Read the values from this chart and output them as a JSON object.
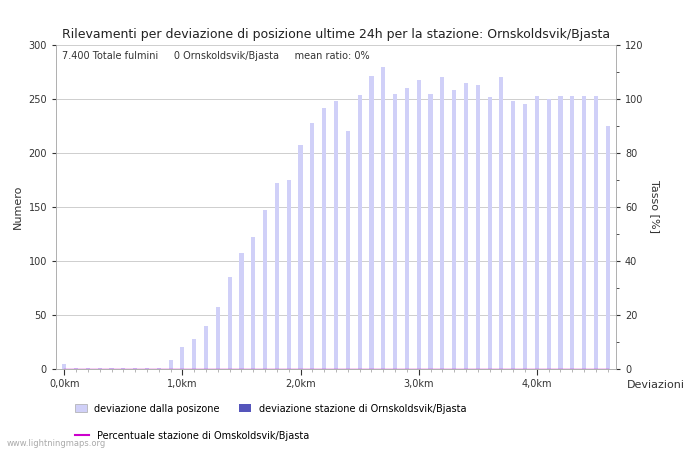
{
  "title": "Rilevamenti per deviazione di posizione ultime 24h per la stazione: Ornskoldsvik/Bjasta",
  "ylabel_left": "Numero",
  "ylabel_right": "Tasso [%]",
  "annotation": "7.400 Totale fulmini     0 Ornskoldsvik/Bjasta     mean ratio: 0%",
  "watermark": "www.lightningmaps.org",
  "background_color": "#ffffff",
  "grid_color": "#bbbbbb",
  "bar_color_light": "#d0d0f8",
  "bar_color_dark": "#5555bb",
  "line_color": "#cc00cc",
  "ylim_left": [
    0,
    300
  ],
  "ylim_right": [
    0,
    120
  ],
  "yticks_left": [
    0,
    50,
    100,
    150,
    200,
    250,
    300
  ],
  "yticks_right": [
    0,
    20,
    40,
    60,
    80,
    100,
    120
  ],
  "xtick_labels": [
    "0,0km",
    "1,0km",
    "2,0km",
    "3,0km",
    "4,0km"
  ],
  "bar_heights": [
    5,
    1,
    1,
    1,
    1,
    1,
    1,
    1,
    1,
    8,
    20,
    28,
    40,
    57,
    85,
    107,
    122,
    147,
    172,
    175,
    207,
    228,
    242,
    248,
    220,
    254,
    271,
    280,
    255,
    260,
    268,
    255,
    270,
    258,
    265,
    263,
    252,
    270,
    248,
    245,
    253,
    250,
    253,
    253,
    253,
    253,
    225
  ],
  "station_bar_heights": [
    0,
    0,
    0,
    0,
    0,
    0,
    0,
    0,
    0,
    0,
    0,
    0,
    0,
    0,
    0,
    0,
    0,
    0,
    0,
    0,
    0,
    0,
    0,
    0,
    0,
    0,
    0,
    0,
    0,
    0,
    0,
    0,
    0,
    0,
    0,
    0,
    0,
    0,
    0,
    0,
    0,
    0,
    0,
    0,
    0,
    0,
    0
  ],
  "legend_label_light": "deviazione dalla posizone",
  "legend_label_dark": "deviazione stazione di Ornskoldsvik/Bjasta",
  "legend_label_line": "Percentuale stazione di Omskoldsvik/Bjasta",
  "deviazioni_label": "Deviazioni",
  "n_bars": 47,
  "bar_width": 0.35
}
